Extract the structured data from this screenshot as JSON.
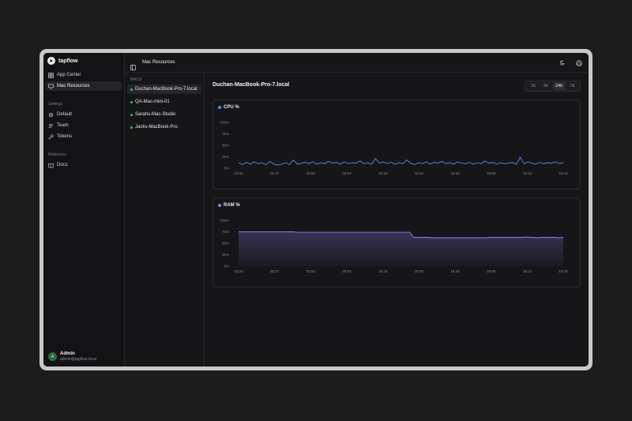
{
  "brand": {
    "name": "tapflow"
  },
  "sidebar": {
    "items": [
      {
        "label": "App Center",
        "icon": "grid-icon"
      },
      {
        "label": "Mac Resources",
        "icon": "monitor-icon"
      }
    ],
    "settings_label": "Settings",
    "settings_items": [
      {
        "label": "Default",
        "icon": "gear-icon"
      },
      {
        "label": "Team",
        "icon": "users-icon"
      },
      {
        "label": "Tokens",
        "icon": "key-icon"
      }
    ],
    "reference_label": "Reference",
    "reference_items": [
      {
        "label": "Docs",
        "icon": "book-icon"
      }
    ]
  },
  "user": {
    "initial": "A",
    "name": "Admin",
    "email": "admin@tapflow.local"
  },
  "topbar": {
    "title": "Mac Resources"
  },
  "macs": {
    "label": "MACS",
    "items": [
      {
        "label": "Duchan-MacBook-Pro-7.local"
      },
      {
        "label": "QA-Mac-mini-01"
      },
      {
        "label": "Sarahs-Mac-Studio"
      },
      {
        "label": "Jacks-MacBook-Pro"
      }
    ]
  },
  "main": {
    "host_title": "Duchan-MacBook-Pro-7.local",
    "ranges": [
      "1h",
      "6h",
      "24h",
      "7d"
    ],
    "active_range": "24h"
  },
  "colors": {
    "cpu": "#4f8ff7",
    "ram": "#8c7ff0",
    "online": "#2fbf71",
    "accent_bg": "#26262a"
  },
  "chart_data": [
    {
      "type": "line",
      "title": "CPU %",
      "ylabel": "",
      "xlabel": "",
      "ylim": [
        0,
        100
      ],
      "yticks": [
        "100%",
        "75%",
        "50%",
        "25%",
        "0%"
      ],
      "x_ticks": [
        "02:24",
        "02:37",
        "02:50",
        "03:03",
        "19:19",
        "18:32",
        "18:45",
        "18:58",
        "19:12",
        "19:18"
      ],
      "grid": false,
      "series": [
        {
          "name": "CPU %",
          "values": [
            12,
            8,
            13,
            9,
            14,
            10,
            12,
            8,
            15,
            9,
            7,
            9,
            12,
            8,
            18,
            9,
            11,
            13,
            10,
            14,
            9,
            12,
            10,
            15,
            11,
            13,
            9,
            14,
            10,
            12,
            11,
            16,
            10,
            12,
            9,
            21,
            11,
            14,
            10,
            13,
            9,
            12,
            10,
            18,
            11,
            8,
            12,
            10,
            14,
            9,
            13,
            11,
            15,
            10,
            12,
            9,
            14,
            11,
            10,
            13,
            9,
            12,
            10,
            16,
            11,
            13,
            9,
            12,
            10,
            11,
            13,
            9,
            24,
            10,
            14,
            11,
            9,
            13,
            10,
            12,
            11,
            14,
            10,
            12
          ]
        }
      ]
    },
    {
      "type": "area",
      "title": "RAM %",
      "ylabel": "",
      "xlabel": "",
      "ylim": [
        0,
        100
      ],
      "yticks": [
        "100%",
        "75%",
        "50%",
        "25%",
        "0%"
      ],
      "x_ticks": [
        "02:24",
        "02:37",
        "02:50",
        "03:03",
        "19:19",
        "18:32",
        "18:45",
        "18:58",
        "19:12",
        "19:18"
      ],
      "grid": false,
      "series": [
        {
          "name": "RAM %",
          "values": [
            75,
            75,
            75,
            75,
            75,
            75,
            75,
            75,
            75,
            75,
            75,
            75,
            75,
            75,
            75,
            75,
            74,
            74,
            74,
            74,
            74,
            74,
            74,
            74,
            74,
            74,
            74,
            74,
            74,
            74,
            74,
            74,
            74,
            74,
            74,
            74,
            74,
            74,
            74,
            74,
            74,
            74,
            74,
            74,
            74,
            74,
            74,
            74,
            63,
            63,
            63,
            63,
            63,
            62,
            62,
            62,
            62,
            62,
            62,
            62,
            62,
            62,
            62,
            62,
            62,
            62,
            62,
            62,
            62,
            63,
            63,
            63,
            63,
            63,
            63,
            63,
            63,
            63,
            63,
            64,
            63,
            63,
            62,
            63,
            63,
            63,
            63,
            63,
            62,
            63
          ]
        }
      ]
    }
  ]
}
